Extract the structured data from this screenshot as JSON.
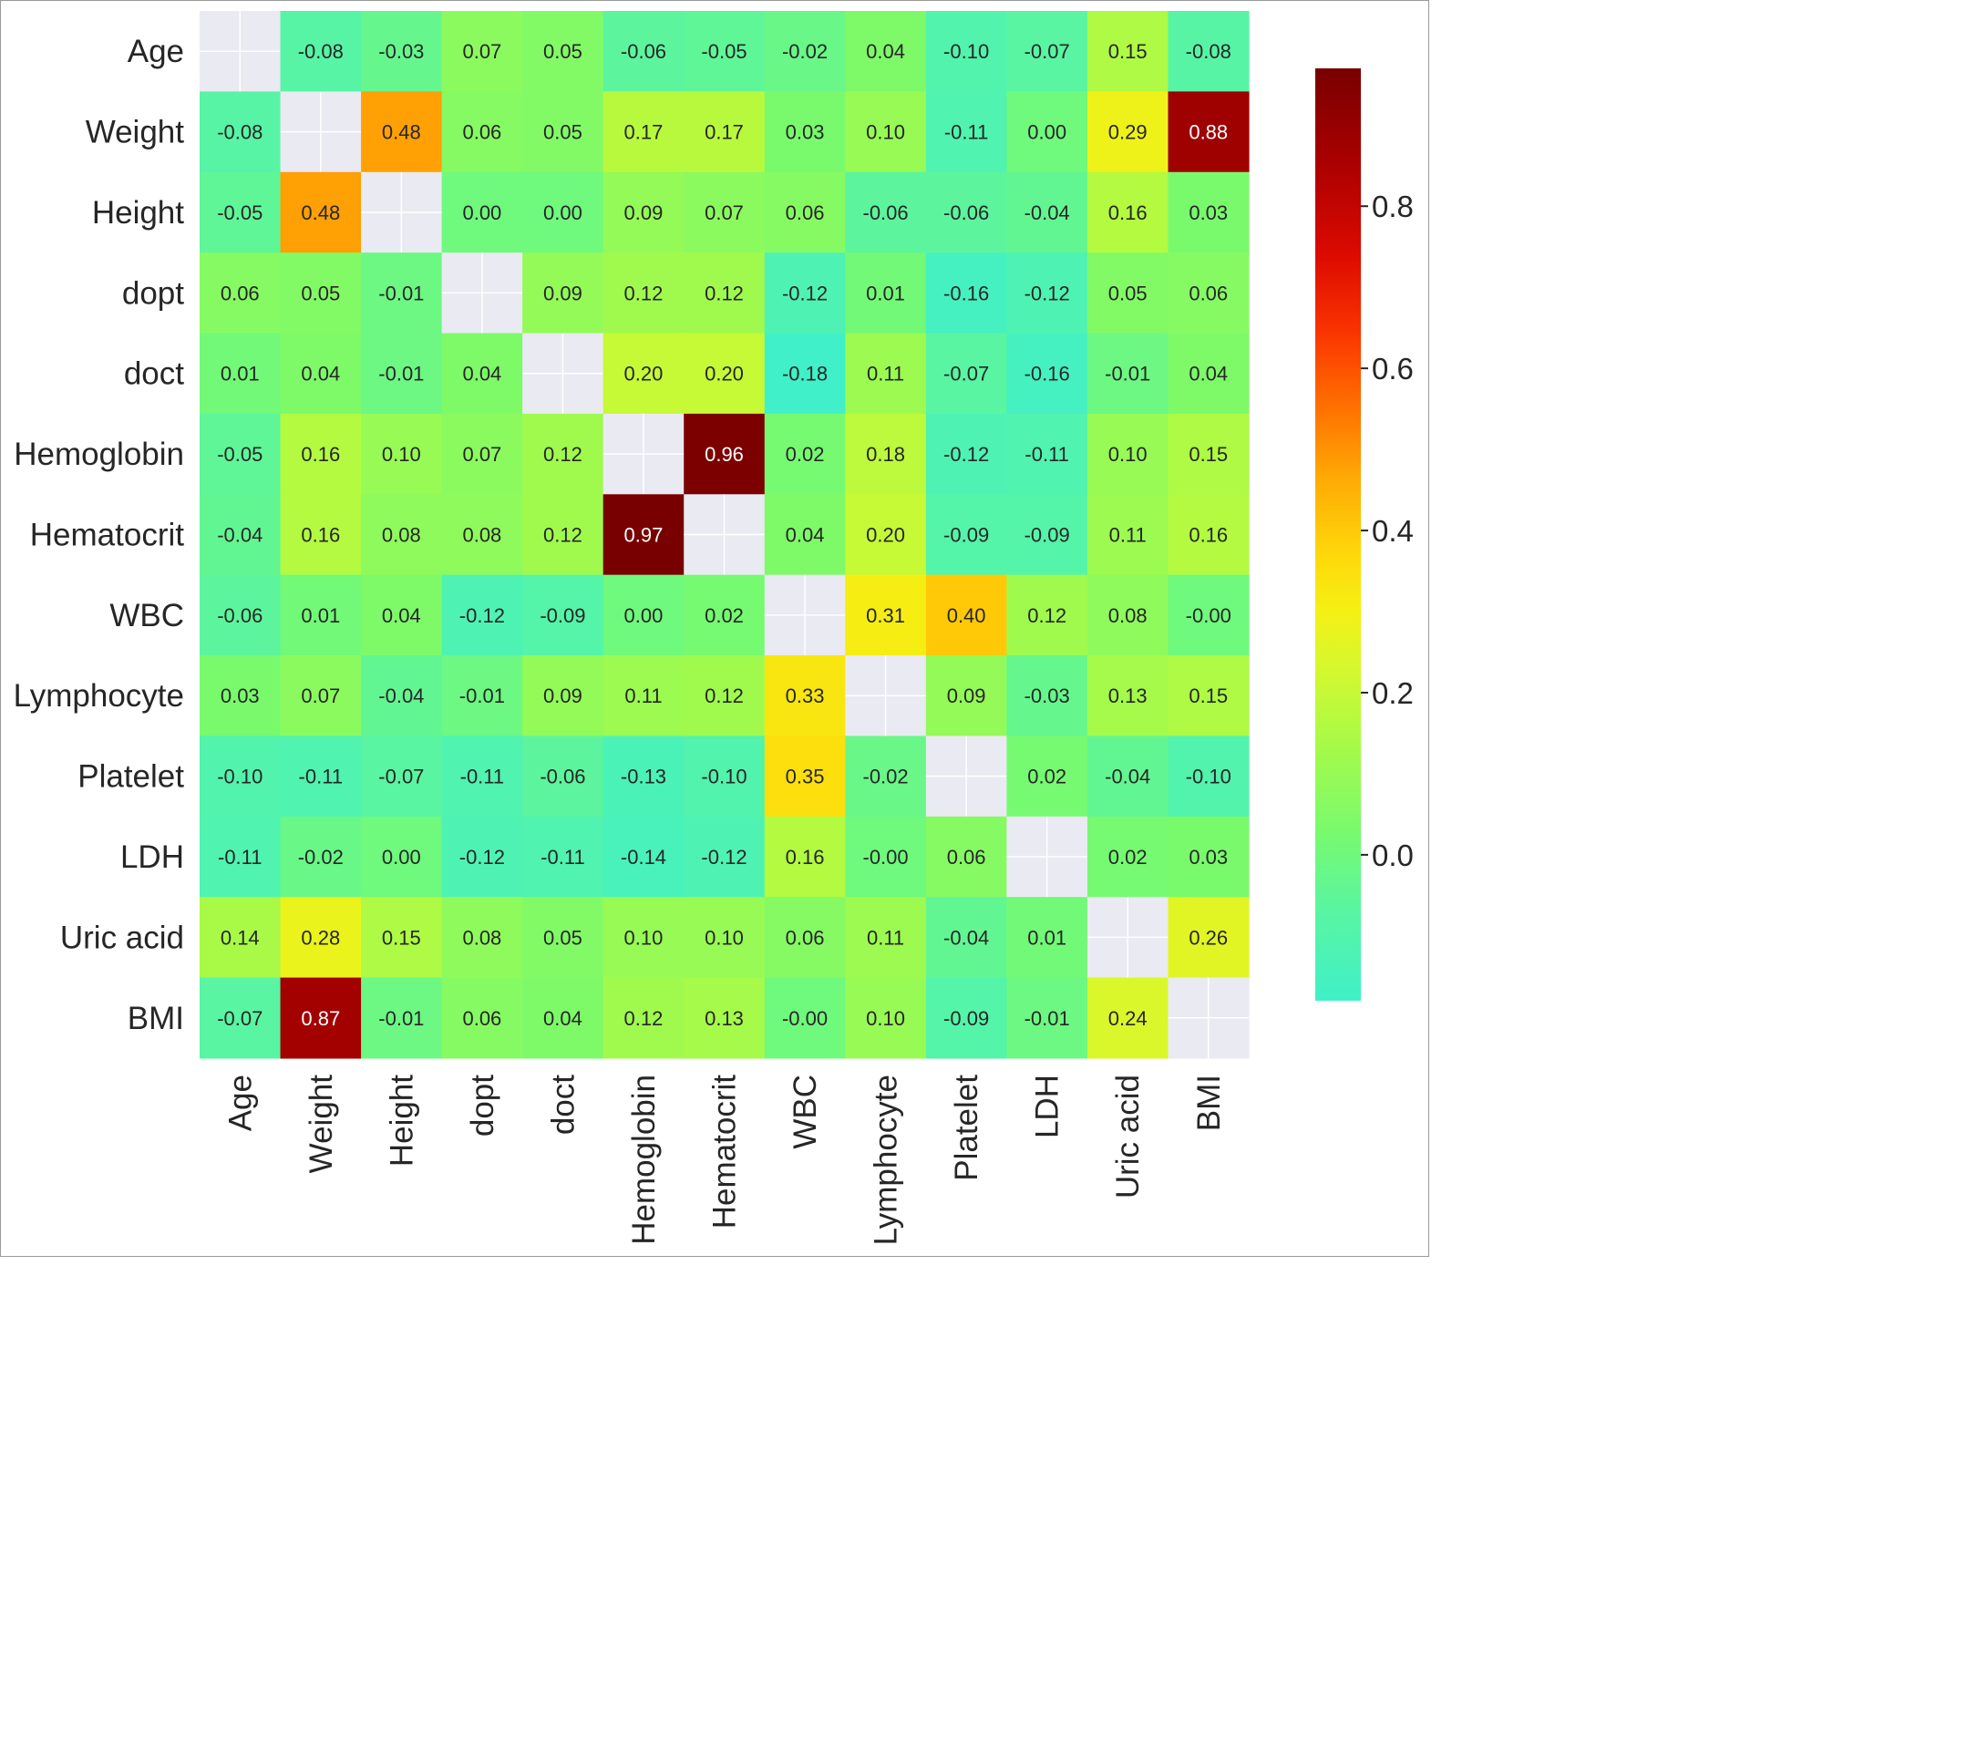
{
  "chart_data": {
    "type": "heatmap",
    "colormap": "jet-like: turquoise (low) through green, yellow, orange, red to dark red (high)",
    "diagonal": "masked (light gray)",
    "labels": [
      "Age",
      "Weight",
      "Height",
      "dopt",
      "doct",
      "Hemoglobin",
      "Hematocrit",
      "WBC",
      "Lymphocyte",
      "Platelet",
      "LDH",
      "Uric acid",
      "BMI"
    ],
    "matrix": [
      [
        null,
        "-0.08",
        "-0.03",
        "0.07",
        "0.05",
        "-0.06",
        "-0.05",
        "-0.02",
        "0.04",
        "-0.10",
        "-0.07",
        "0.15",
        "-0.08"
      ],
      [
        "-0.08",
        null,
        "0.48",
        "0.06",
        "0.05",
        "0.17",
        "0.17",
        "0.03",
        "0.10",
        "-0.11",
        "0.00",
        "0.29",
        "0.88"
      ],
      [
        "-0.05",
        "0.48",
        null,
        "0.00",
        "0.00",
        "0.09",
        "0.07",
        "0.06",
        "-0.06",
        "-0.06",
        "-0.04",
        "0.16",
        "0.03"
      ],
      [
        "0.06",
        "0.05",
        "-0.01",
        null,
        "0.09",
        "0.12",
        "0.12",
        "-0.12",
        "0.01",
        "-0.16",
        "-0.12",
        "0.05",
        "0.06"
      ],
      [
        "0.01",
        "0.04",
        "-0.01",
        "0.04",
        null,
        "0.20",
        "0.20",
        "-0.18",
        "0.11",
        "-0.07",
        "-0.16",
        "-0.01",
        "0.04"
      ],
      [
        "-0.05",
        "0.16",
        "0.10",
        "0.07",
        "0.12",
        null,
        "0.96",
        "0.02",
        "0.18",
        "-0.12",
        "-0.11",
        "0.10",
        "0.15"
      ],
      [
        "-0.04",
        "0.16",
        "0.08",
        "0.08",
        "0.12",
        "0.97",
        null,
        "0.04",
        "0.20",
        "-0.09",
        "-0.09",
        "0.11",
        "0.16"
      ],
      [
        "-0.06",
        "0.01",
        "0.04",
        "-0.12",
        "-0.09",
        "0.00",
        "0.02",
        null,
        "0.31",
        "0.40",
        "0.12",
        "0.08",
        "-0.00"
      ],
      [
        "0.03",
        "0.07",
        "-0.04",
        "-0.01",
        "0.09",
        "0.11",
        "0.12",
        "0.33",
        null,
        "0.09",
        "-0.03",
        "0.13",
        "0.15"
      ],
      [
        "-0.10",
        "-0.11",
        "-0.07",
        "-0.11",
        "-0.06",
        "-0.13",
        "-0.10",
        "0.35",
        "-0.02",
        null,
        "0.02",
        "-0.04",
        "-0.10"
      ],
      [
        "-0.11",
        "-0.02",
        "0.00",
        "-0.12",
        "-0.11",
        "-0.14",
        "-0.12",
        "0.16",
        "-0.00",
        "0.06",
        null,
        "0.02",
        "0.03"
      ],
      [
        "0.14",
        "0.28",
        "0.15",
        "0.08",
        "0.05",
        "0.10",
        "0.10",
        "0.06",
        "0.11",
        "-0.04",
        "0.01",
        null,
        "0.26"
      ],
      [
        "-0.07",
        "0.87",
        "-0.01",
        "0.06",
        "0.04",
        "0.12",
        "0.13",
        "-0.00",
        "0.10",
        "-0.09",
        "-0.01",
        "0.24",
        null
      ]
    ],
    "colorbar": {
      "vmin": -0.18,
      "vmax": 0.97,
      "ticks": [
        0.0,
        0.2,
        0.4,
        0.6,
        0.8
      ],
      "tick_labels": [
        "0.0",
        "0.2",
        "0.4",
        "0.6",
        "0.8"
      ]
    },
    "masked_color": "#eaeaf2",
    "grid": false
  }
}
